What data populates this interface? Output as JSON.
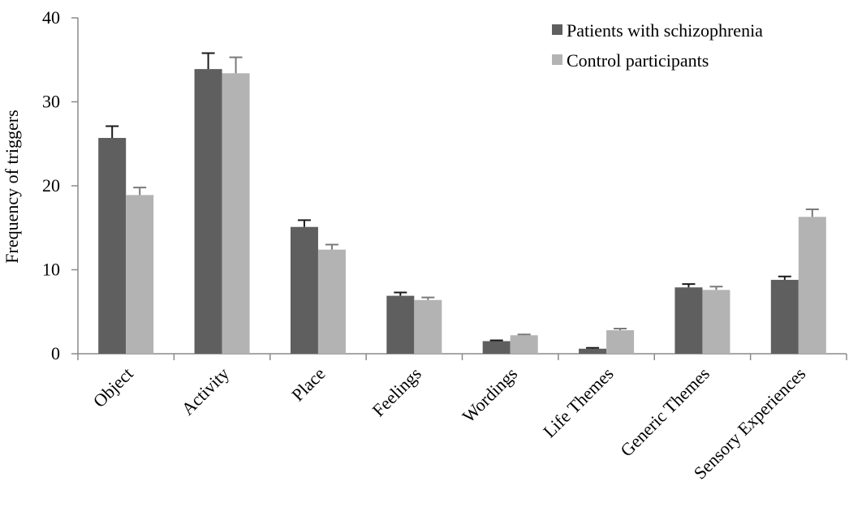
{
  "chart_data": {
    "type": "bar",
    "ylabel": "Frequency of triggers",
    "ylim": [
      0,
      40
    ],
    "yticks": [
      0,
      10,
      20,
      30,
      40
    ],
    "grid": false,
    "legend_position": "top-right",
    "categories": [
      "Object",
      "Activity",
      "Place",
      "Feelings",
      "Wordings",
      "Life Themes",
      "Generic Themes",
      "Sensory Experiences"
    ],
    "series": [
      {
        "name": "Patients with schizophrenia",
        "color": "#5f5f5f",
        "values": [
          25.7,
          33.9,
          15.1,
          6.9,
          1.5,
          0.6,
          7.9,
          8.8
        ],
        "error": [
          1.4,
          1.9,
          0.8,
          0.4,
          0.1,
          0.1,
          0.4,
          0.4
        ]
      },
      {
        "name": "Control participants",
        "color": "#b3b3b3",
        "values": [
          18.9,
          33.4,
          12.4,
          6.4,
          2.2,
          2.8,
          7.6,
          16.3
        ],
        "error": [
          0.9,
          1.9,
          0.6,
          0.3,
          0.1,
          0.2,
          0.4,
          0.9
        ]
      }
    ]
  }
}
